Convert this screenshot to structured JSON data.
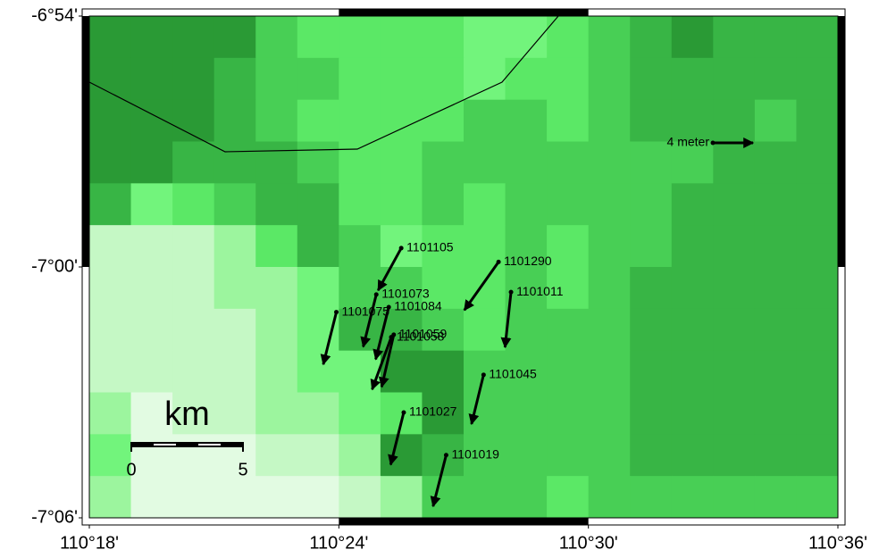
{
  "chart_data": {
    "type": "quiver",
    "xlim": [
      110.3,
      110.6
    ],
    "ylim": [
      -7.1,
      -6.9
    ],
    "xticks": [
      {
        "value": 110.3,
        "label": "110°18'"
      },
      {
        "value": 110.4,
        "label": "110°24'"
      },
      {
        "value": 110.5,
        "label": "110°30'"
      },
      {
        "value": 110.6,
        "label": "110°36'"
      }
    ],
    "yticks": [
      {
        "value": -6.9,
        "label": "-6°54'"
      },
      {
        "value": -7.0,
        "label": "-7°00'"
      },
      {
        "value": -7.1,
        "label": "-7°06'"
      }
    ],
    "color": "#000000",
    "stations": [
      {
        "name": "1101105",
        "lon": 110.425,
        "lat": -6.9925,
        "east": -2.3,
        "north": -4.2
      },
      {
        "name": "1101290",
        "lon": 110.464,
        "lat": -6.998,
        "east": -3.4,
        "north": -4.8
      },
      {
        "name": "1101073",
        "lon": 110.415,
        "lat": -7.011,
        "east": -1.3,
        "north": -5.2
      },
      {
        "name": "1101011",
        "lon": 110.469,
        "lat": -7.01,
        "east": -0.6,
        "north": -5.5
      },
      {
        "name": "1101084",
        "lon": 110.42,
        "lat": -7.016,
        "east": -1.3,
        "north": -5.2
      },
      {
        "name": "1101075",
        "lon": 110.399,
        "lat": -7.018,
        "east": -1.3,
        "north": -5.2
      },
      {
        "name": "1101059",
        "lon": 110.422,
        "lat": -7.027,
        "east": -1.2,
        "north": -5.2
      },
      {
        "name": "1101058",
        "lon": 110.421,
        "lat": -7.028,
        "east": -1.9,
        "north": -5.2
      },
      {
        "name": "1101045",
        "lon": 110.458,
        "lat": -7.043,
        "east": -1.2,
        "north": -4.9
      },
      {
        "name": "1101027",
        "lon": 110.426,
        "lat": -7.058,
        "east": -1.3,
        "north": -5.2
      },
      {
        "name": "1101019",
        "lon": 110.443,
        "lat": -7.075,
        "east": -1.3,
        "north": -5.1
      }
    ],
    "reference": {
      "value": 4,
      "label": "4 meter"
    },
    "scale_bar": {
      "label": "km",
      "ticks": [
        0,
        5
      ]
    }
  }
}
